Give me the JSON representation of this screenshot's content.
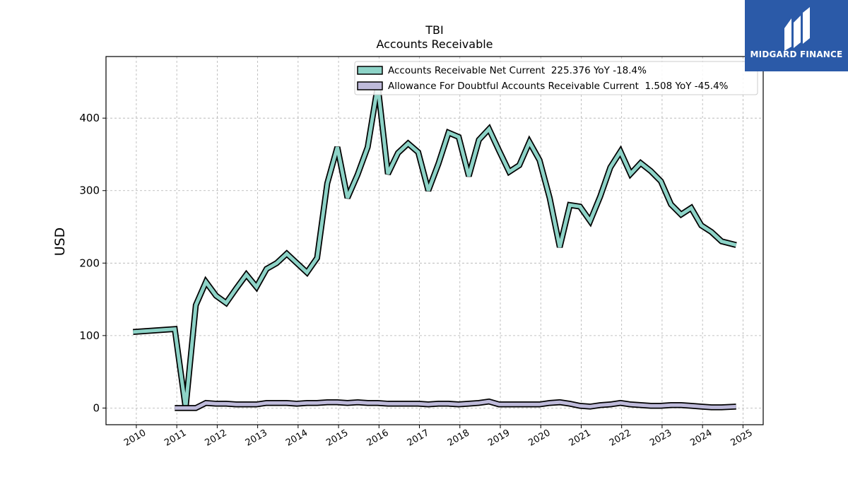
{
  "chart_data": {
    "type": "line",
    "title": "TBI",
    "subtitle": "Accounts Receivable",
    "ylabel": "USD",
    "xlabel": "",
    "x_ticks": [
      "2010",
      "2011",
      "2012",
      "2013",
      "2014",
      "2015",
      "2016",
      "2017",
      "2018",
      "2019",
      "2020",
      "2021",
      "2022",
      "2023",
      "2024",
      "2025"
    ],
    "y_ticks": [
      0,
      100,
      200,
      300,
      400
    ],
    "xlim": [
      2009.25,
      2025.5
    ],
    "ylim": [
      -23,
      485
    ],
    "grid": true,
    "legend_position": "top-right",
    "series": [
      {
        "name": "Accounts Receivable Net Current  225.376 YoY -18.4%",
        "color": "#8dd3c7",
        "points": [
          [
            2009.92,
            105
          ],
          [
            2010.95,
            109
          ],
          [
            2011.22,
            0
          ],
          [
            2011.47,
            142
          ],
          [
            2011.72,
            174
          ],
          [
            2011.97,
            155
          ],
          [
            2012.22,
            145
          ],
          [
            2012.47,
            165
          ],
          [
            2012.72,
            184
          ],
          [
            2012.97,
            167
          ],
          [
            2013.22,
            192
          ],
          [
            2013.47,
            200
          ],
          [
            2013.72,
            213
          ],
          [
            2013.97,
            200
          ],
          [
            2014.22,
            187
          ],
          [
            2014.47,
            207
          ],
          [
            2014.72,
            310
          ],
          [
            2014.97,
            360
          ],
          [
            2015.22,
            290
          ],
          [
            2015.47,
            322
          ],
          [
            2015.72,
            360
          ],
          [
            2015.97,
            445
          ],
          [
            2016.22,
            323
          ],
          [
            2016.47,
            352
          ],
          [
            2016.72,
            365
          ],
          [
            2016.97,
            353
          ],
          [
            2017.22,
            300
          ],
          [
            2017.47,
            337
          ],
          [
            2017.72,
            380
          ],
          [
            2017.97,
            374
          ],
          [
            2018.22,
            320
          ],
          [
            2018.47,
            370
          ],
          [
            2018.72,
            385
          ],
          [
            2018.97,
            355
          ],
          [
            2019.22,
            326
          ],
          [
            2019.47,
            335
          ],
          [
            2019.72,
            367
          ],
          [
            2019.97,
            342
          ],
          [
            2020.22,
            290
          ],
          [
            2020.47,
            222
          ],
          [
            2020.72,
            280
          ],
          [
            2020.97,
            278
          ],
          [
            2021.22,
            258
          ],
          [
            2021.47,
            292
          ],
          [
            2021.72,
            332
          ],
          [
            2021.97,
            354
          ],
          [
            2022.22,
            323
          ],
          [
            2022.47,
            338
          ],
          [
            2022.72,
            327
          ],
          [
            2022.97,
            313
          ],
          [
            2023.22,
            281
          ],
          [
            2023.47,
            267
          ],
          [
            2023.72,
            276
          ],
          [
            2023.97,
            252
          ],
          [
            2024.22,
            243
          ],
          [
            2024.47,
            230
          ],
          [
            2024.83,
            225
          ]
        ]
      },
      {
        "name": "Allowance For Doubtful Accounts Receivable Current  1.508 YoY -45.4%",
        "color": "#bebada",
        "points": [
          [
            2010.95,
            0
          ],
          [
            2011.47,
            0
          ],
          [
            2011.72,
            7
          ],
          [
            2011.97,
            6
          ],
          [
            2012.22,
            6
          ],
          [
            2012.47,
            5
          ],
          [
            2012.72,
            5
          ],
          [
            2012.97,
            5
          ],
          [
            2013.22,
            7
          ],
          [
            2013.47,
            7
          ],
          [
            2013.72,
            7
          ],
          [
            2013.97,
            6
          ],
          [
            2014.22,
            7
          ],
          [
            2014.47,
            7
          ],
          [
            2014.72,
            8
          ],
          [
            2014.97,
            8
          ],
          [
            2015.22,
            7
          ],
          [
            2015.47,
            8
          ],
          [
            2015.72,
            7
          ],
          [
            2015.97,
            7
          ],
          [
            2016.22,
            6
          ],
          [
            2016.47,
            6
          ],
          [
            2016.72,
            6
          ],
          [
            2016.97,
            6
          ],
          [
            2017.22,
            5
          ],
          [
            2017.47,
            6
          ],
          [
            2017.72,
            6
          ],
          [
            2017.97,
            5
          ],
          [
            2018.22,
            6
          ],
          [
            2018.47,
            7
          ],
          [
            2018.72,
            9
          ],
          [
            2018.97,
            5
          ],
          [
            2019.22,
            5
          ],
          [
            2019.47,
            5
          ],
          [
            2019.72,
            5
          ],
          [
            2019.97,
            5
          ],
          [
            2020.22,
            7
          ],
          [
            2020.47,
            8
          ],
          [
            2020.72,
            6
          ],
          [
            2020.97,
            3
          ],
          [
            2021.22,
            2
          ],
          [
            2021.47,
            4
          ],
          [
            2021.72,
            5
          ],
          [
            2021.97,
            7
          ],
          [
            2022.22,
            5
          ],
          [
            2022.47,
            4
          ],
          [
            2022.72,
            3
          ],
          [
            2022.97,
            3
          ],
          [
            2023.22,
            4
          ],
          [
            2023.47,
            4
          ],
          [
            2023.72,
            3
          ],
          [
            2023.97,
            2
          ],
          [
            2024.22,
            1
          ],
          [
            2024.47,
            1
          ],
          [
            2024.83,
            2
          ]
        ]
      }
    ]
  },
  "brand": {
    "name": "MIDGARD FINANCE",
    "icon": "midgard-finance-logo-icon"
  }
}
